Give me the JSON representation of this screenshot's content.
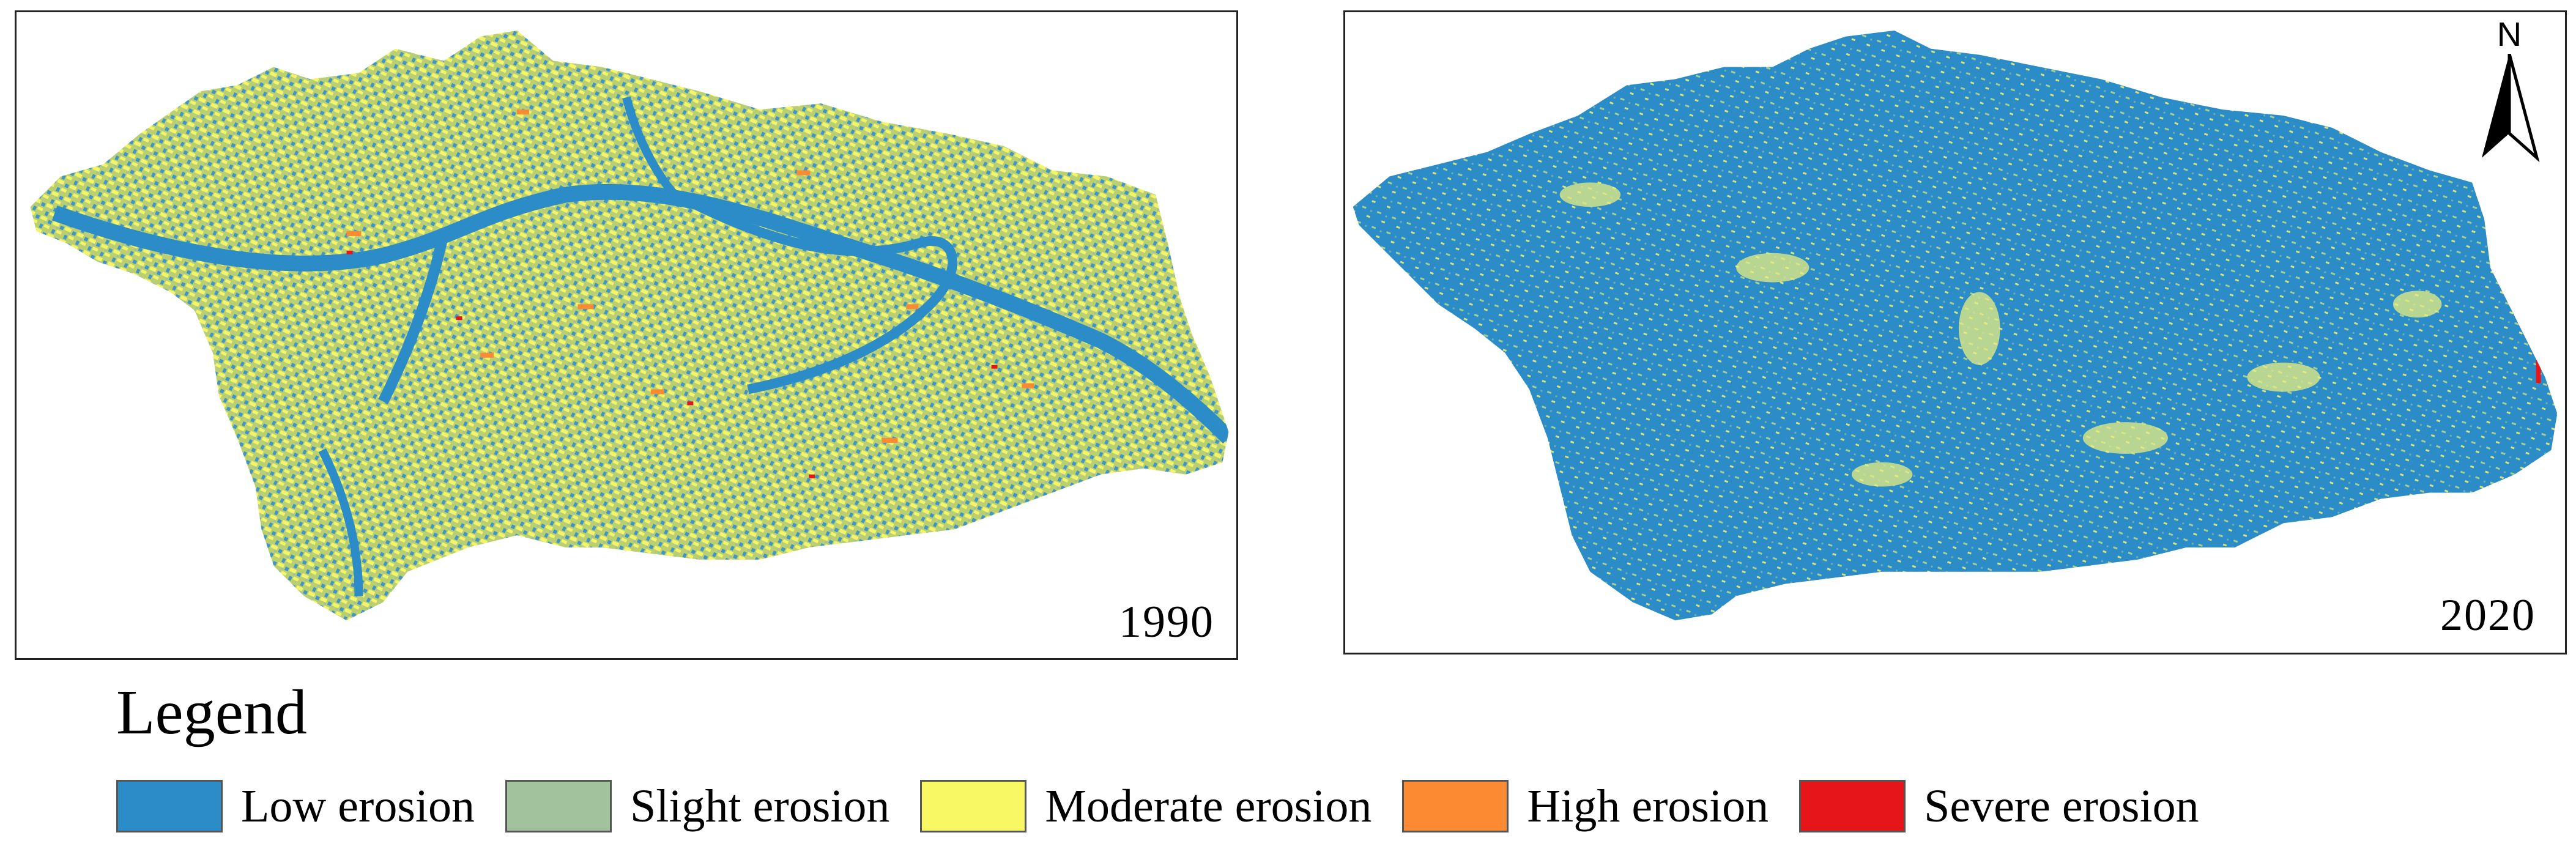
{
  "maps": [
    {
      "year": "1990"
    },
    {
      "year": "2020"
    }
  ],
  "north_arrow": {
    "label": "N"
  },
  "legend": {
    "title": "Legend",
    "items": [
      {
        "label": "Low erosion",
        "color": "#2b8cc8"
      },
      {
        "label": "Slight erosion",
        "color": "#a2c29e"
      },
      {
        "label": "Moderate erosion",
        "color": "#f8f864"
      },
      {
        "label": "High erosion",
        "color": "#fb8a32"
      },
      {
        "label": "Severe erosion",
        "color": "#e61519"
      }
    ]
  }
}
